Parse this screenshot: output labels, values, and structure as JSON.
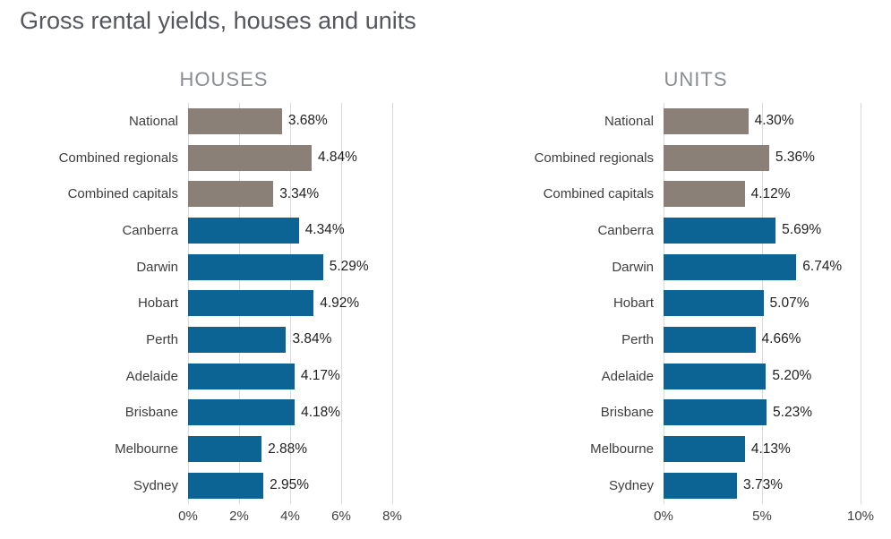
{
  "page": {
    "title": "Gross rental yields, houses and units"
  },
  "colors": {
    "background": "#ffffff",
    "bar_aggregate": "#8a8078",
    "bar_capital": "#0c6495",
    "gridline": "#d9d9d9",
    "title_text": "#55575c",
    "chart_title_text": "#8a8d91",
    "label_text": "#3d3d3d",
    "value_text": "#1f1f1f"
  },
  "chart_data": [
    {
      "type": "bar",
      "orientation": "horizontal",
      "title": "HOUSES",
      "categories": [
        "National",
        "Combined regionals",
        "Combined capitals",
        "Canberra",
        "Darwin",
        "Hobart",
        "Perth",
        "Adelaide",
        "Brisbane",
        "Melbourne",
        "Sydney"
      ],
      "values": [
        3.68,
        4.84,
        3.34,
        4.34,
        5.29,
        4.92,
        3.84,
        4.17,
        4.18,
        2.88,
        2.95
      ],
      "value_labels": [
        "3.68%",
        "4.84%",
        "3.34%",
        "4.34%",
        "5.29%",
        "4.92%",
        "3.84%",
        "4.17%",
        "4.18%",
        "2.88%",
        "2.95%"
      ],
      "group": [
        "aggregate",
        "aggregate",
        "aggregate",
        "capital",
        "capital",
        "capital",
        "capital",
        "capital",
        "capital",
        "capital",
        "capital"
      ],
      "xlim": [
        0,
        8
      ],
      "ticks": [
        {
          "label": "0%",
          "value": 0
        },
        {
          "label": "2%",
          "value": 2
        },
        {
          "label": "4%",
          "value": 4
        },
        {
          "label": "6%",
          "value": 6
        },
        {
          "label": "8%",
          "value": 8
        }
      ],
      "grid": true,
      "legend": "none"
    },
    {
      "type": "bar",
      "orientation": "horizontal",
      "title": "UNITS",
      "categories": [
        "National",
        "Combined regionals",
        "Combined capitals",
        "Canberra",
        "Darwin",
        "Hobart",
        "Perth",
        "Adelaide",
        "Brisbane",
        "Melbourne",
        "Sydney"
      ],
      "values": [
        4.3,
        5.36,
        4.12,
        5.69,
        6.74,
        5.07,
        4.66,
        5.2,
        5.23,
        4.13,
        3.73
      ],
      "value_labels": [
        "4.30%",
        "5.36%",
        "4.12%",
        "5.69%",
        "6.74%",
        "5.07%",
        "4.66%",
        "5.20%",
        "5.23%",
        "4.13%",
        "3.73%"
      ],
      "group": [
        "aggregate",
        "aggregate",
        "aggregate",
        "capital",
        "capital",
        "capital",
        "capital",
        "capital",
        "capital",
        "capital",
        "capital"
      ],
      "xlim": [
        0,
        10
      ],
      "ticks": [
        {
          "label": "0%",
          "value": 0
        },
        {
          "label": "5%",
          "value": 5
        },
        {
          "label": "10%",
          "value": 10
        }
      ],
      "grid": true,
      "legend": "none"
    }
  ]
}
